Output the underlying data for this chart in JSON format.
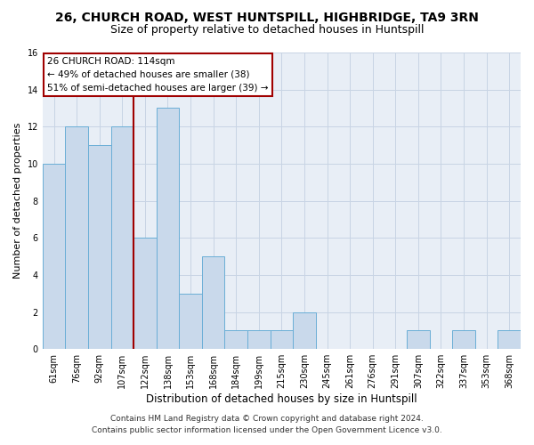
{
  "title": "26, CHURCH ROAD, WEST HUNTSPILL, HIGHBRIDGE, TA9 3RN",
  "subtitle": "Size of property relative to detached houses in Huntspill",
  "xlabel": "Distribution of detached houses by size in Huntspill",
  "ylabel": "Number of detached properties",
  "categories": [
    "61sqm",
    "76sqm",
    "92sqm",
    "107sqm",
    "122sqm",
    "138sqm",
    "153sqm",
    "168sqm",
    "184sqm",
    "199sqm",
    "215sqm",
    "230sqm",
    "245sqm",
    "261sqm",
    "276sqm",
    "291sqm",
    "307sqm",
    "322sqm",
    "337sqm",
    "353sqm",
    "368sqm"
  ],
  "values": [
    10,
    12,
    11,
    12,
    6,
    13,
    3,
    5,
    1,
    1,
    1,
    2,
    0,
    0,
    0,
    0,
    1,
    0,
    1,
    0,
    1
  ],
  "bar_color": "#c9d9eb",
  "bar_edge_color": "#6aaed6",
  "vline_x": 3.5,
  "vline_color": "#a00000",
  "annotation_line1": "26 CHURCH ROAD: 114sqm",
  "annotation_line2": "← 49% of detached houses are smaller (38)",
  "annotation_line3": "51% of semi-detached houses are larger (39) →",
  "annotation_box_edge_color": "#a00000",
  "ylim": [
    0,
    16
  ],
  "yticks": [
    0,
    2,
    4,
    6,
    8,
    10,
    12,
    14,
    16
  ],
  "footer_line1": "Contains HM Land Registry data © Crown copyright and database right 2024.",
  "footer_line2": "Contains public sector information licensed under the Open Government Licence v3.0.",
  "background_color": "#ffffff",
  "plot_bg_color": "#e8eef6",
  "grid_color": "#c8d4e4",
  "title_fontsize": 10,
  "subtitle_fontsize": 9,
  "xlabel_fontsize": 8.5,
  "ylabel_fontsize": 8,
  "tick_fontsize": 7,
  "annotation_fontsize": 7.5,
  "footer_fontsize": 6.5
}
